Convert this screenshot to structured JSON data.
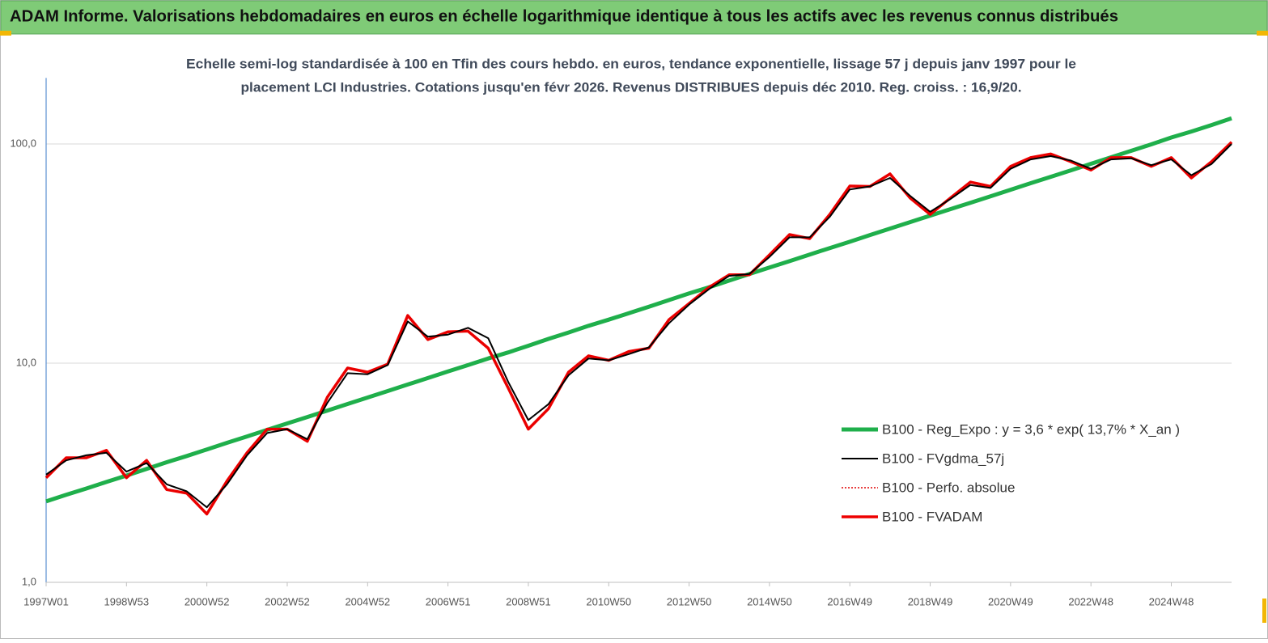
{
  "chart_data": {
    "type": "line",
    "title": "ADAM Informe. Valorisations hebdomadaires en euros en échelle logarithmique identique à tous les actifs avec les revenus connus distribués",
    "subtitle": [
      "Echelle semi-log standardisée à 100 en Tfin des cours hebdo. en euros, tendance exponentielle, lissage 57 j depuis janv 1997 pour le",
      "placement LCI Industries. Cotations jusqu'en févr 2026. Revenus DISTRIBUES depuis déc 2010. Reg. croiss. : 16,9/20."
    ],
    "categories": [
      "1997W01",
      null,
      null,
      null,
      "1998W53",
      null,
      null,
      null,
      "2000W52",
      null,
      null,
      null,
      "2002W52",
      null,
      null,
      null,
      "2004W52",
      null,
      null,
      null,
      "2006W51",
      null,
      null,
      null,
      "2008W51",
      null,
      null,
      null,
      "2010W50",
      null,
      null,
      null,
      "2012W50",
      null,
      null,
      null,
      "2014W50",
      null,
      null,
      null,
      "2016W49",
      null,
      null,
      null,
      "2018W49",
      null,
      null,
      null,
      "2020W49",
      null,
      null,
      null,
      "2022W48",
      null,
      null,
      null,
      "2024W48",
      null,
      null,
      null
    ],
    "log_scale": true,
    "ylim": [
      1,
      200
    ],
    "yticks": [
      {
        "value": 1,
        "label": "1,0"
      },
      {
        "value": 10,
        "label": "10,0"
      },
      {
        "value": 100,
        "label": "100,0"
      }
    ],
    "grid": true,
    "series": [
      {
        "name": "B100 - Reg_Expo : y = 3,6 * exp( 13,7% *  X_an )",
        "color": "#1faf4b",
        "line_width": 5,
        "dash": "solid",
        "values": [
          2.34,
          2.51,
          2.68,
          2.87,
          3.07,
          3.29,
          3.53,
          3.77,
          4.04,
          4.33,
          4.63,
          4.96,
          5.31,
          5.68,
          6.08,
          6.51,
          6.97,
          7.46,
          7.99,
          8.55,
          9.16,
          9.8,
          10.5,
          11.2,
          12.0,
          12.9,
          13.8,
          14.8,
          15.8,
          16.9,
          18.1,
          19.4,
          20.8,
          22.2,
          23.8,
          25.5,
          27.3,
          29.2,
          31.3,
          33.5,
          35.8,
          38.4,
          41.1,
          44.0,
          47.1,
          50.4,
          53.9,
          57.7,
          61.8,
          66.2,
          70.8,
          75.8,
          81.2,
          86.9,
          93.0,
          99.6,
          107,
          114,
          122,
          131
        ]
      },
      {
        "name": "B100 - FVgdma_57j",
        "color": "#000000",
        "line_width": 2,
        "dash": "solid",
        "values": [
          3.1,
          3.6,
          3.8,
          3.9,
          3.2,
          3.5,
          2.8,
          2.6,
          2.2,
          2.8,
          3.8,
          4.8,
          5.0,
          4.5,
          6.6,
          9.0,
          8.9,
          9.8,
          15.5,
          13.2,
          13.5,
          14.5,
          13.0,
          8.2,
          5.5,
          6.5,
          8.8,
          10.5,
          10.3,
          11.0,
          11.8,
          15.2,
          18.5,
          21.8,
          25.0,
          25.5,
          30.5,
          37.5,
          37.5,
          46.5,
          62,
          64,
          70,
          58,
          49,
          56,
          65,
          63,
          77,
          85,
          88,
          84,
          77,
          85,
          86,
          80,
          85,
          72,
          81,
          100
        ]
      },
      {
        "name": "B100 - Perfo. absolue",
        "color": "#e00000",
        "line_width": 1.5,
        "dash": "dotted",
        "values": [
          3.0,
          3.7,
          3.7,
          4.0,
          3.0,
          3.6,
          2.65,
          2.55,
          2.05,
          2.9,
          3.9,
          5.0,
          5.0,
          4.4,
          7.0,
          9.5,
          9.1,
          9.9,
          16.5,
          12.8,
          13.9,
          14.0,
          11.7,
          7.7,
          5.0,
          6.2,
          9.1,
          10.8,
          10.3,
          11.3,
          11.7,
          15.8,
          18.7,
          22.2,
          25.3,
          25.3,
          31.2,
          38.6,
          37.0,
          47.7,
          64.3,
          64.0,
          73.0,
          56.7,
          47.7,
          56.7,
          67.0,
          64.0,
          79.0,
          86.6,
          90.0,
          83.0,
          76.0,
          86.6,
          86.6,
          79.0,
          86.6,
          70.0,
          83.0,
          102
        ]
      },
      {
        "name": "B100 - FVADAM",
        "color": "#ee0000",
        "line_width": 3.5,
        "dash": "solid",
        "values": [
          3.0,
          3.7,
          3.7,
          4.0,
          3.0,
          3.6,
          2.65,
          2.55,
          2.05,
          2.9,
          3.9,
          5.0,
          5.0,
          4.4,
          7.0,
          9.5,
          9.1,
          9.9,
          16.5,
          12.8,
          13.9,
          14.0,
          11.7,
          7.7,
          5.0,
          6.2,
          9.1,
          10.8,
          10.3,
          11.3,
          11.7,
          15.8,
          18.7,
          22.2,
          25.3,
          25.3,
          31.2,
          38.6,
          37.0,
          47.7,
          64.3,
          64.0,
          73.0,
          56.7,
          47.7,
          56.7,
          67.0,
          64.0,
          79.0,
          86.6,
          90.0,
          83.0,
          76.0,
          86.6,
          86.6,
          79.0,
          86.6,
          70.0,
          83.0,
          102
        ]
      }
    ]
  }
}
